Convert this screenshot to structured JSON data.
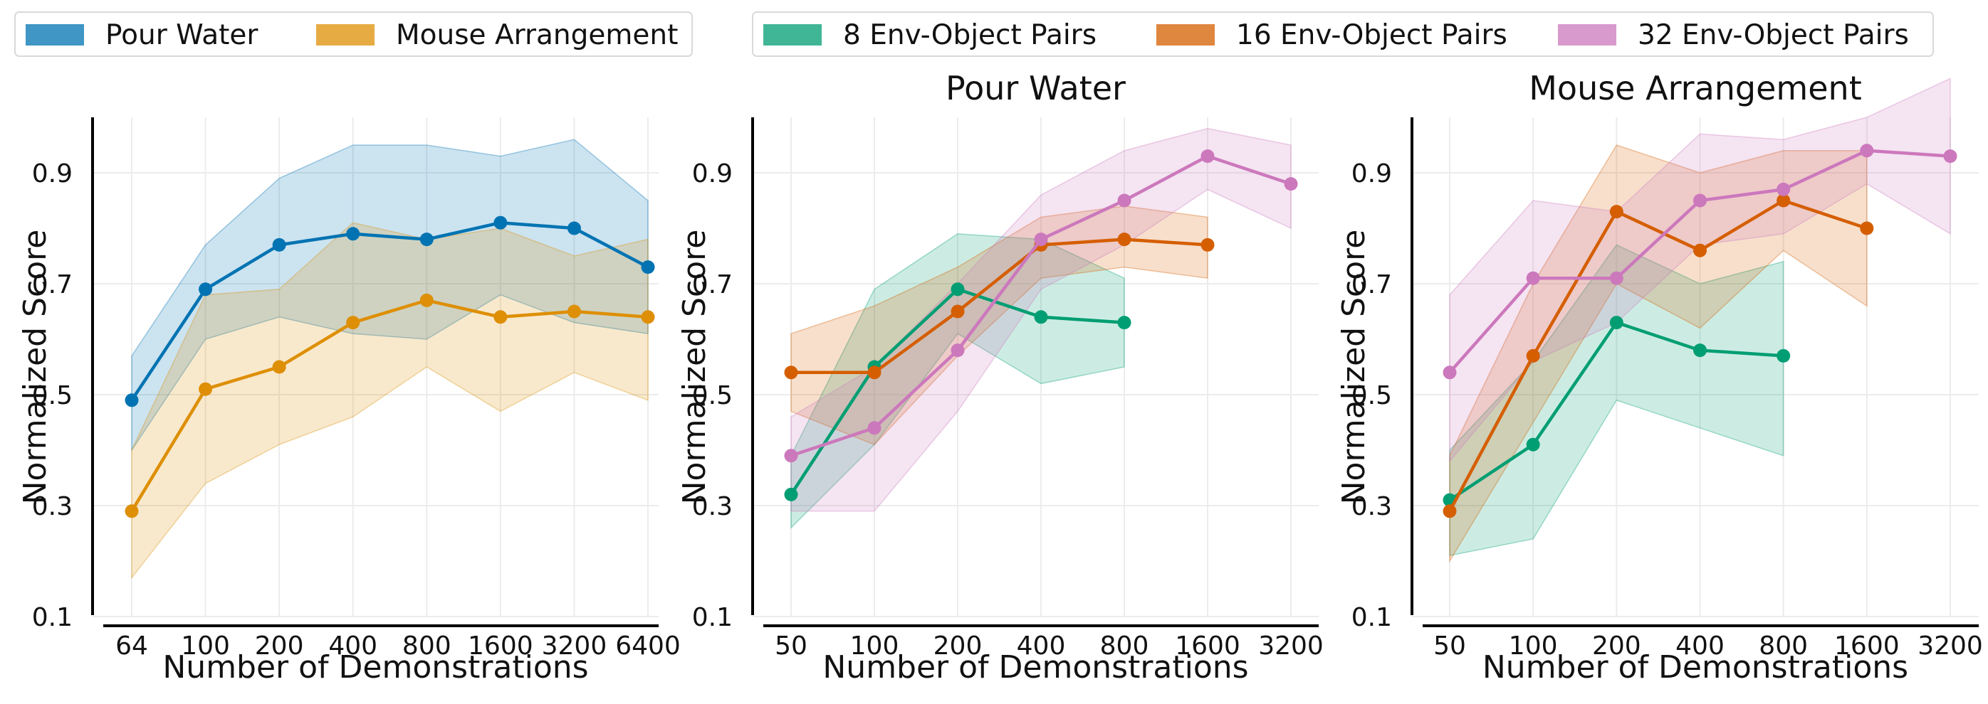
{
  "legends": [
    {
      "items": [
        {
          "label": "Pour Water",
          "color": "#0173b2"
        },
        {
          "label": "Mouse Arrangement",
          "color": "#de8f05"
        }
      ]
    },
    {
      "items": [
        {
          "label": "8 Env-Object Pairs",
          "color": "#029e73"
        },
        {
          "label": "16 Env-Object Pairs",
          "color": "#d55e00"
        },
        {
          "label": "32 Env-Object Pairs",
          "color": "#cc78bc"
        }
      ]
    }
  ],
  "chart_data": [
    {
      "type": "line",
      "title": "",
      "xlabel": "Number of Demonstrations",
      "ylabel": "Normalized Score",
      "x": [
        "64",
        "100",
        "200",
        "400",
        "800",
        "1600",
        "3200",
        "6400"
      ],
      "ylim": [
        0.1,
        1.0
      ],
      "yticks": [
        "0.1",
        "0.3",
        "0.5",
        "0.7",
        "0.9"
      ],
      "grid": true,
      "series": [
        {
          "name": "Pour Water",
          "color": "#0173b2",
          "values": [
            0.49,
            0.69,
            0.77,
            0.79,
            0.78,
            0.81,
            0.8,
            0.73
          ],
          "lower": [
            0.4,
            0.6,
            0.64,
            0.61,
            0.6,
            0.68,
            0.63,
            0.61
          ],
          "upper": [
            0.57,
            0.77,
            0.89,
            0.95,
            0.95,
            0.93,
            0.96,
            0.85
          ]
        },
        {
          "name": "Mouse Arrangement",
          "color": "#de8f05",
          "values": [
            0.29,
            0.51,
            0.55,
            0.63,
            0.67,
            0.64,
            0.65,
            0.64
          ],
          "lower": [
            0.17,
            0.34,
            0.41,
            0.46,
            0.55,
            0.47,
            0.54,
            0.49
          ],
          "upper": [
            0.4,
            0.68,
            0.69,
            0.81,
            0.78,
            0.8,
            0.75,
            0.78
          ]
        }
      ]
    },
    {
      "type": "line",
      "title": "Pour Water",
      "xlabel": "Number of Demonstrations",
      "ylabel": "Normalized Score",
      "x": [
        "50",
        "100",
        "200",
        "400",
        "800",
        "1600",
        "3200"
      ],
      "ylim": [
        0.1,
        1.0
      ],
      "yticks": [
        "0.1",
        "0.3",
        "0.5",
        "0.7",
        "0.9"
      ],
      "grid": true,
      "series": [
        {
          "name": "8 Env-Object Pairs",
          "color": "#029e73",
          "values": [
            0.32,
            0.55,
            0.69,
            0.64,
            0.63,
            null,
            null
          ],
          "lower": [
            0.26,
            0.41,
            0.61,
            0.52,
            0.55,
            null,
            null
          ],
          "upper": [
            0.39,
            0.69,
            0.79,
            0.78,
            0.71,
            null,
            null
          ]
        },
        {
          "name": "16 Env-Object Pairs",
          "color": "#d55e00",
          "values": [
            0.54,
            0.54,
            0.65,
            0.77,
            0.78,
            0.77,
            null
          ],
          "lower": [
            0.47,
            0.41,
            0.57,
            0.71,
            0.73,
            0.71,
            null
          ],
          "upper": [
            0.61,
            0.66,
            0.73,
            0.82,
            0.84,
            0.82,
            null
          ]
        },
        {
          "name": "32 Env-Object Pairs",
          "color": "#cc78bc",
          "values": [
            0.39,
            0.44,
            0.58,
            0.78,
            0.85,
            0.93,
            0.88
          ],
          "lower": [
            0.29,
            0.29,
            0.47,
            0.69,
            0.77,
            0.87,
            0.8
          ],
          "upper": [
            0.46,
            0.55,
            0.7,
            0.86,
            0.94,
            0.98,
            0.95
          ]
        }
      ]
    },
    {
      "type": "line",
      "title": "Mouse Arrangement",
      "xlabel": "Number of Demonstrations",
      "ylabel": "Normalized Score",
      "x": [
        "50",
        "100",
        "200",
        "400",
        "800",
        "1600",
        "3200"
      ],
      "ylim": [
        0.1,
        1.0
      ],
      "yticks": [
        "0.1",
        "0.3",
        "0.5",
        "0.7",
        "0.9"
      ],
      "grid": true,
      "series": [
        {
          "name": "8 Env-Object Pairs",
          "color": "#029e73",
          "values": [
            0.31,
            0.41,
            0.63,
            0.58,
            0.57,
            null,
            null
          ],
          "lower": [
            0.21,
            0.24,
            0.49,
            0.44,
            0.39,
            null,
            null
          ],
          "upper": [
            0.4,
            0.56,
            0.77,
            0.7,
            0.74,
            null,
            null
          ]
        },
        {
          "name": "16 Env-Object Pairs",
          "color": "#d55e00",
          "values": [
            0.29,
            0.57,
            0.83,
            0.76,
            0.85,
            0.8,
            null
          ],
          "lower": [
            0.2,
            0.45,
            0.7,
            0.62,
            0.76,
            0.66,
            null
          ],
          "upper": [
            0.39,
            0.7,
            0.95,
            0.9,
            0.94,
            0.94,
            null
          ]
        },
        {
          "name": "32 Env-Object Pairs",
          "color": "#cc78bc",
          "values": [
            0.54,
            0.71,
            0.71,
            0.85,
            0.87,
            0.94,
            0.93
          ],
          "lower": [
            0.38,
            0.56,
            0.63,
            0.77,
            0.79,
            0.88,
            0.79
          ],
          "upper": [
            0.68,
            0.85,
            0.83,
            0.97,
            0.96,
            1.0,
            1.07
          ]
        }
      ]
    }
  ]
}
